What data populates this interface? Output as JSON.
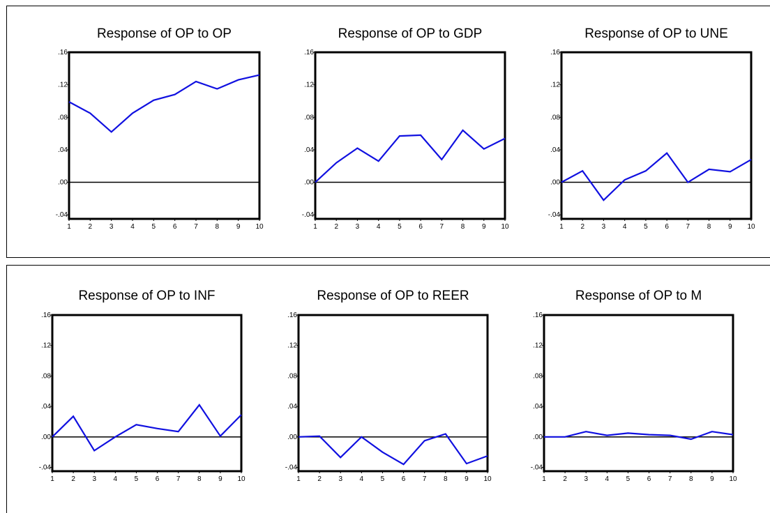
{
  "chart_data": [
    {
      "type": "line",
      "title": "Response of OP to OP",
      "x": [
        1,
        2,
        3,
        4,
        5,
        6,
        7,
        8,
        9,
        10
      ],
      "y_ticks": [
        ".16",
        ".12",
        ".08",
        ".04",
        ".00",
        "-.04"
      ],
      "x_ticks": [
        "1",
        "2",
        "3",
        "4",
        "5",
        "6",
        "7",
        "8",
        "9",
        "10"
      ],
      "ylim": [
        -0.045,
        0.16
      ],
      "series": [
        {
          "values": [
            0.099,
            0.085,
            0.062,
            0.085,
            0.101,
            0.108,
            0.124,
            0.115,
            0.126,
            0.132
          ],
          "color": "#1010e0"
        }
      ]
    },
    {
      "type": "line",
      "title": "Response of OP to GDP",
      "x": [
        1,
        2,
        3,
        4,
        5,
        6,
        7,
        8,
        9,
        10
      ],
      "y_ticks": [
        ".16",
        ".12",
        ".08",
        ".04",
        ".00",
        "-.04"
      ],
      "x_ticks": [
        "1",
        "2",
        "3",
        "4",
        "5",
        "6",
        "7",
        "8",
        "9",
        "10"
      ],
      "ylim": [
        -0.045,
        0.16
      ],
      "series": [
        {
          "values": [
            0.0,
            0.024,
            0.042,
            0.026,
            0.057,
            0.058,
            0.028,
            0.064,
            0.041,
            0.054
          ],
          "color": "#1010e0"
        }
      ]
    },
    {
      "type": "line",
      "title": "Response of OP to UNE",
      "x": [
        1,
        2,
        3,
        4,
        5,
        6,
        7,
        8,
        9,
        10
      ],
      "y_ticks": [
        ".16",
        ".12",
        ".08",
        ".04",
        ".00",
        "-.04"
      ],
      "x_ticks": [
        "1",
        "2",
        "3",
        "4",
        "5",
        "6",
        "7",
        "8",
        "9",
        "10"
      ],
      "ylim": [
        -0.045,
        0.16
      ],
      "series": [
        {
          "values": [
            0.0,
            0.014,
            -0.022,
            0.003,
            0.014,
            0.036,
            0.0,
            0.016,
            0.013,
            0.028
          ],
          "color": "#1010e0"
        }
      ]
    },
    {
      "type": "line",
      "title": "Response of OP to INF",
      "x": [
        1,
        2,
        3,
        4,
        5,
        6,
        7,
        8,
        9,
        10
      ],
      "y_ticks": [
        ".16",
        ".12",
        ".08",
        ".04",
        ".00",
        "-.04"
      ],
      "x_ticks": [
        "1",
        "2",
        "3",
        "4",
        "5",
        "6",
        "7",
        "8",
        "9",
        "10"
      ],
      "ylim": [
        -0.045,
        0.16
      ],
      "series": [
        {
          "values": [
            0.0,
            0.027,
            -0.018,
            0.0,
            0.016,
            0.011,
            0.007,
            0.042,
            0.001,
            0.029
          ],
          "color": "#1010e0"
        }
      ]
    },
    {
      "type": "line",
      "title": "Response of OP to REER",
      "x": [
        1,
        2,
        3,
        4,
        5,
        6,
        7,
        8,
        9,
        10
      ],
      "y_ticks": [
        ".16",
        ".12",
        ".08",
        ".04",
        ".00",
        "-.04"
      ],
      "x_ticks": [
        "1",
        "2",
        "3",
        "4",
        "5",
        "6",
        "7",
        "8",
        "9",
        "10"
      ],
      "ylim": [
        -0.045,
        0.16
      ],
      "series": [
        {
          "values": [
            0.0,
            0.001,
            -0.027,
            0.0,
            -0.02,
            -0.036,
            -0.005,
            0.004,
            -0.035,
            -0.025
          ],
          "color": "#1010e0"
        }
      ]
    },
    {
      "type": "line",
      "title": "Response of OP to M",
      "x": [
        1,
        2,
        3,
        4,
        5,
        6,
        7,
        8,
        9,
        10
      ],
      "y_ticks": [
        ".16",
        ".12",
        ".08",
        ".04",
        ".00",
        "-.04"
      ],
      "x_ticks": [
        "1",
        "2",
        "3",
        "4",
        "5",
        "6",
        "7",
        "8",
        "9",
        "10"
      ],
      "ylim": [
        -0.045,
        0.16
      ],
      "series": [
        {
          "values": [
            0.0,
            0.0,
            0.007,
            0.002,
            0.005,
            0.003,
            0.002,
            -0.003,
            0.007,
            0.003
          ],
          "color": "#1010e0"
        }
      ]
    }
  ]
}
